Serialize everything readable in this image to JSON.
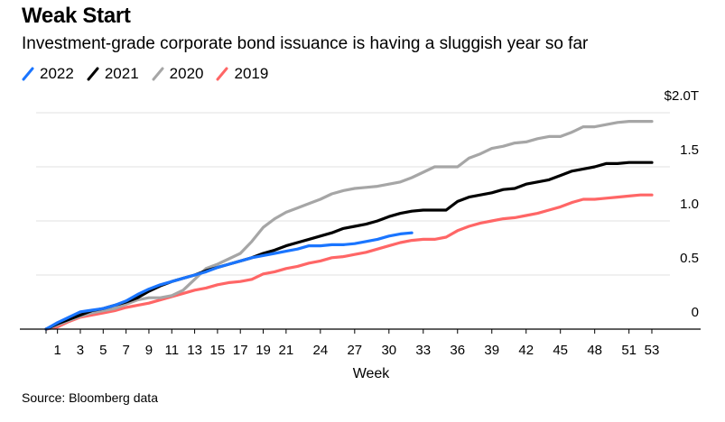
{
  "header": {
    "title": "Weak Start",
    "subtitle": "Investment-grade corporate bond issuance is having a sluggish year so far"
  },
  "legend": [
    {
      "label": "2022",
      "color": "#1a75ff"
    },
    {
      "label": "2021",
      "color": "#000000"
    },
    {
      "label": "2020",
      "color": "#a6a6a6"
    },
    {
      "label": "2019",
      "color": "#ff6666"
    }
  ],
  "footer": {
    "source": "Source: Bloomberg data"
  },
  "chart_data": {
    "type": "line",
    "title": "Weak Start",
    "subtitle": "Investment-grade corporate bond issuance is having a sluggish year so far",
    "xlabel": "Week",
    "ylabel": "",
    "xlim": [
      0,
      53
    ],
    "ylim": [
      0,
      2.0
    ],
    "x_ticks": [
      1,
      3,
      5,
      7,
      9,
      11,
      13,
      15,
      17,
      19,
      21,
      24,
      27,
      30,
      33,
      36,
      39,
      42,
      45,
      48,
      51,
      53
    ],
    "y_ticks": [
      {
        "value": 0,
        "label": "0"
      },
      {
        "value": 0.5,
        "label": "0.5"
      },
      {
        "value": 1.0,
        "label": "1.0"
      },
      {
        "value": 1.5,
        "label": "1.5"
      },
      {
        "value": 2.0,
        "label": "$2.0T"
      }
    ],
    "grid": true,
    "y_axis_position": "right",
    "legend_position": "top-left",
    "series": [
      {
        "name": "2022",
        "color": "#1a75ff",
        "x": [
          0,
          1,
          2,
          3,
          4,
          5,
          6,
          7,
          8,
          9,
          10,
          11,
          12,
          13,
          14,
          15,
          16,
          17,
          18,
          19,
          20,
          21,
          22,
          23,
          24,
          25,
          26,
          27,
          28,
          29,
          30,
          31,
          32
        ],
        "values": [
          0,
          0.06,
          0.11,
          0.16,
          0.175,
          0.19,
          0.22,
          0.26,
          0.32,
          0.37,
          0.41,
          0.44,
          0.47,
          0.5,
          0.53,
          0.57,
          0.6,
          0.63,
          0.66,
          0.68,
          0.7,
          0.72,
          0.74,
          0.77,
          0.77,
          0.78,
          0.78,
          0.79,
          0.81,
          0.83,
          0.86,
          0.88,
          0.89
        ]
      },
      {
        "name": "2021",
        "color": "#000000",
        "x": [
          0,
          1,
          2,
          3,
          4,
          5,
          6,
          7,
          8,
          9,
          10,
          11,
          12,
          13,
          14,
          15,
          16,
          17,
          18,
          19,
          20,
          21,
          22,
          23,
          24,
          25,
          26,
          27,
          28,
          29,
          30,
          31,
          32,
          33,
          34,
          35,
          36,
          37,
          38,
          39,
          40,
          41,
          42,
          43,
          44,
          45,
          46,
          47,
          48,
          49,
          50,
          51,
          52,
          53
        ],
        "values": [
          0,
          0.05,
          0.09,
          0.13,
          0.17,
          0.19,
          0.22,
          0.25,
          0.29,
          0.35,
          0.4,
          0.44,
          0.47,
          0.5,
          0.54,
          0.57,
          0.6,
          0.63,
          0.66,
          0.7,
          0.73,
          0.77,
          0.8,
          0.83,
          0.86,
          0.89,
          0.93,
          0.95,
          0.97,
          1.0,
          1.04,
          1.07,
          1.09,
          1.1,
          1.1,
          1.1,
          1.18,
          1.22,
          1.24,
          1.26,
          1.29,
          1.3,
          1.34,
          1.36,
          1.38,
          1.42,
          1.46,
          1.48,
          1.5,
          1.53,
          1.53,
          1.54,
          1.54,
          1.54
        ]
      },
      {
        "name": "2020",
        "color": "#a6a6a6",
        "x": [
          0,
          1,
          2,
          3,
          4,
          5,
          6,
          7,
          8,
          9,
          10,
          11,
          12,
          13,
          14,
          15,
          16,
          17,
          18,
          19,
          20,
          21,
          22,
          23,
          24,
          25,
          26,
          27,
          28,
          29,
          30,
          31,
          32,
          33,
          34,
          35,
          36,
          37,
          38,
          39,
          40,
          41,
          42,
          43,
          44,
          45,
          46,
          47,
          48,
          49,
          50,
          51,
          52,
          53
        ],
        "values": [
          0,
          0.04,
          0.08,
          0.12,
          0.15,
          0.17,
          0.19,
          0.23,
          0.27,
          0.29,
          0.29,
          0.31,
          0.36,
          0.46,
          0.56,
          0.6,
          0.65,
          0.7,
          0.81,
          0.94,
          1.02,
          1.08,
          1.12,
          1.16,
          1.2,
          1.25,
          1.28,
          1.3,
          1.31,
          1.32,
          1.34,
          1.36,
          1.4,
          1.45,
          1.5,
          1.5,
          1.5,
          1.58,
          1.62,
          1.67,
          1.69,
          1.72,
          1.73,
          1.76,
          1.78,
          1.78,
          1.82,
          1.87,
          1.87,
          1.89,
          1.91,
          1.92,
          1.92,
          1.92
        ]
      },
      {
        "name": "2019",
        "color": "#ff6666",
        "x": [
          0,
          1,
          2,
          3,
          4,
          5,
          6,
          7,
          8,
          9,
          10,
          11,
          12,
          13,
          14,
          15,
          16,
          17,
          18,
          19,
          20,
          21,
          22,
          23,
          24,
          25,
          26,
          27,
          28,
          29,
          30,
          31,
          32,
          33,
          34,
          35,
          36,
          37,
          38,
          39,
          40,
          41,
          42,
          43,
          44,
          45,
          46,
          47,
          48,
          49,
          50,
          51,
          52,
          53
        ],
        "values": [
          0,
          0.02,
          0.07,
          0.11,
          0.13,
          0.15,
          0.17,
          0.2,
          0.22,
          0.24,
          0.27,
          0.3,
          0.33,
          0.36,
          0.38,
          0.41,
          0.43,
          0.44,
          0.46,
          0.51,
          0.53,
          0.56,
          0.58,
          0.61,
          0.63,
          0.66,
          0.67,
          0.69,
          0.71,
          0.74,
          0.77,
          0.8,
          0.82,
          0.83,
          0.83,
          0.85,
          0.91,
          0.95,
          0.98,
          1.0,
          1.02,
          1.03,
          1.05,
          1.07,
          1.1,
          1.13,
          1.17,
          1.2,
          1.2,
          1.21,
          1.22,
          1.23,
          1.24,
          1.24
        ]
      }
    ]
  }
}
